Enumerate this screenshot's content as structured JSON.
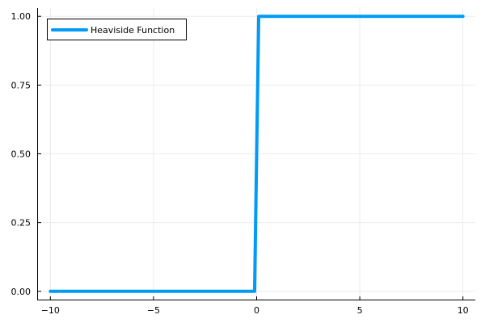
{
  "chart_data": {
    "type": "line",
    "title": "",
    "xlabel": "",
    "ylabel": "",
    "xlim": [
      -10.6,
      10.6
    ],
    "ylim": [
      -0.03,
      1.03
    ],
    "x_ticks": [
      -10,
      -5,
      0,
      5,
      10
    ],
    "x_tick_labels": [
      "−10",
      "−5",
      "0",
      "5",
      "10"
    ],
    "y_ticks": [
      0,
      0.25,
      0.5,
      0.75,
      1
    ],
    "y_tick_labels": [
      "0.00",
      "0.25",
      "0.50",
      "0.75",
      "1.00"
    ],
    "grid": true,
    "legend_position": "top-left",
    "series": [
      {
        "name": "Heaviside Function",
        "color": "#009AF9",
        "x": [
          -10,
          -0.1,
          0.1,
          10
        ],
        "y": [
          0,
          0,
          1,
          1
        ]
      }
    ]
  }
}
